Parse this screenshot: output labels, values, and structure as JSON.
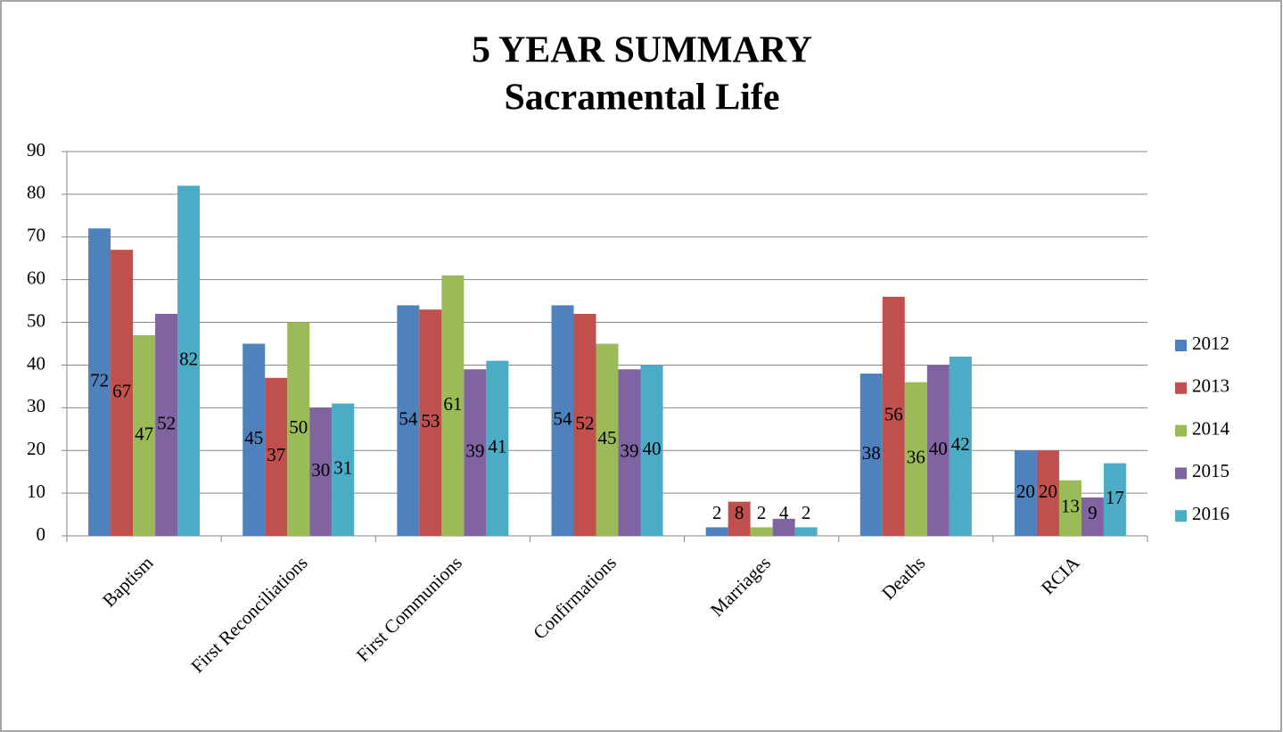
{
  "chart_data": {
    "type": "bar",
    "title": "5 YEAR SUMMARY",
    "subtitle": "Sacramental Life",
    "categories": [
      "Baptism",
      "First Reconciliations",
      "First Communions",
      "Confirmations",
      "Marriages",
      "Deaths",
      "RCIA"
    ],
    "series": [
      {
        "name": "2012",
        "color": "#4f81bd",
        "values": [
          72,
          45,
          54,
          54,
          2,
          38,
          20
        ]
      },
      {
        "name": "2013",
        "color": "#c0504d",
        "values": [
          67,
          37,
          53,
          52,
          8,
          56,
          20
        ]
      },
      {
        "name": "2014",
        "color": "#9bbb59",
        "values": [
          47,
          50,
          61,
          45,
          2,
          36,
          13
        ]
      },
      {
        "name": "2015",
        "color": "#8064a2",
        "values": [
          52,
          30,
          39,
          39,
          4,
          40,
          9
        ]
      },
      {
        "name": "2016",
        "color": "#4bacc6",
        "values": [
          82,
          31,
          41,
          40,
          2,
          42,
          17
        ]
      }
    ],
    "ylim": [
      0,
      90
    ],
    "yticks": [
      0,
      10,
      20,
      30,
      40,
      50,
      60,
      70,
      80,
      90
    ],
    "grid": true,
    "legend": "right"
  }
}
